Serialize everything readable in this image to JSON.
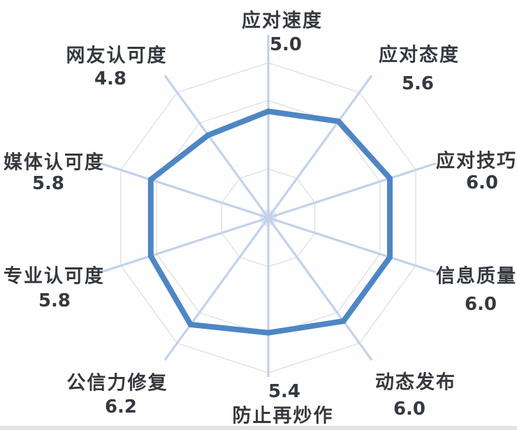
{
  "chart_data": {
    "type": "radar",
    "categories": [
      "应对速度",
      "应对态度",
      "应对技巧",
      "信息质量",
      "动态发布",
      "防止再炒作",
      "公信力修复",
      "专业认可度",
      "媒体认可度",
      "网友认可度"
    ],
    "values": [
      5.0,
      5.6,
      6.0,
      6.0,
      6.0,
      5.4,
      6.2,
      5.8,
      5.8,
      4.8
    ],
    "value_labels": [
      "5.0",
      "5.6",
      "6.0",
      "6.0",
      "6.0",
      "5.4",
      "6.2",
      "5.8",
      "5.8",
      "4.8"
    ],
    "series": [
      {
        "name": "",
        "values": [
          5.0,
          5.6,
          6.0,
          6.0,
          6.0,
          5.4,
          6.2,
          5.8,
          5.8,
          4.8
        ]
      }
    ],
    "start_axis": "top",
    "direction": "clockwise",
    "grid": {
      "shape": "decagon",
      "rings": 3,
      "show": true
    },
    "legend": {
      "show": false
    },
    "colors": {
      "series": "#4e86c4",
      "spokes": "#c2d1ec",
      "rings": "#dcdcdc",
      "text": "#35393f",
      "divider": "#e4e4e4",
      "background": "#fefefe"
    }
  }
}
